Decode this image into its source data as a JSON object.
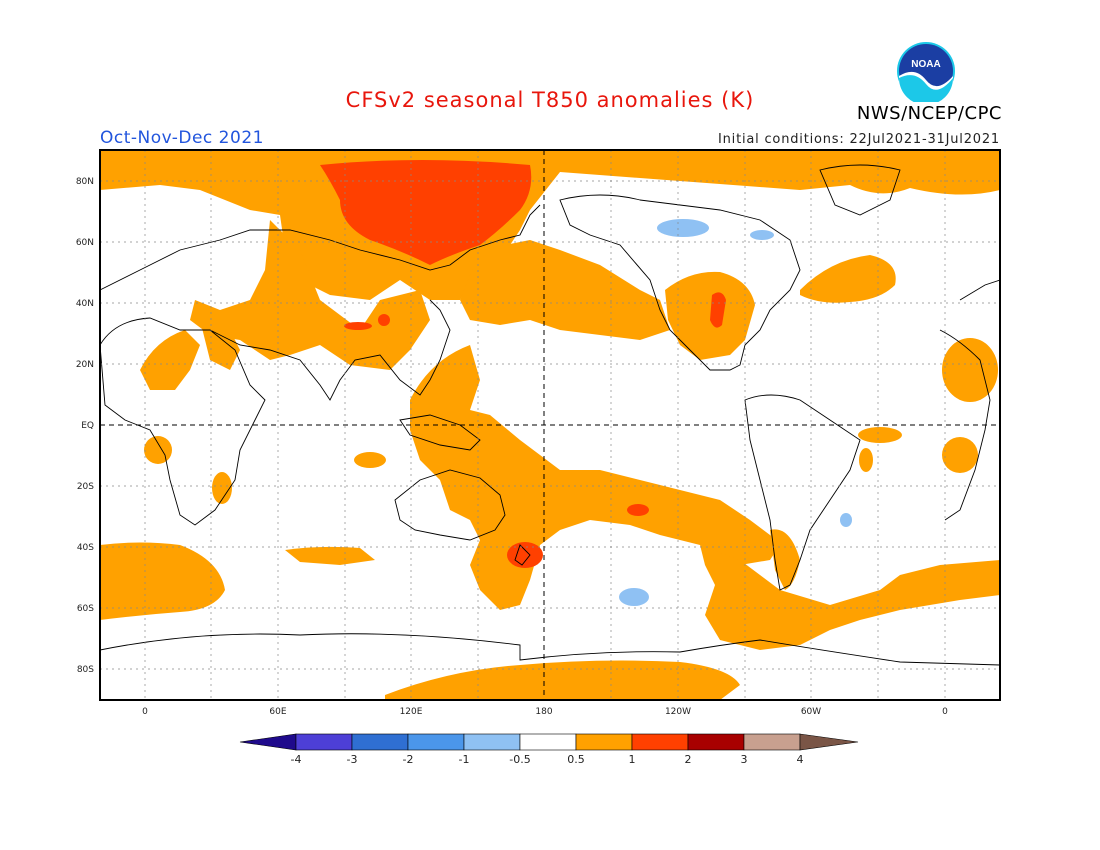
{
  "header": {
    "title": "CFSv2 seasonal T850 anomalies (K)",
    "period": "Oct-Nov-Dec 2021",
    "initial_conditions": "Initial conditions: 22Jul2021-31Jul2021",
    "agency": "NWS/NCEP/CPC",
    "logo_text": "NOAA"
  },
  "map": {
    "lat_labels": [
      "80N",
      "60N",
      "40N",
      "20N",
      "EQ",
      "20S",
      "40S",
      "60S",
      "80S"
    ],
    "lon_labels": [
      "0",
      "60E",
      "120E",
      "180",
      "120W",
      "60W",
      "0"
    ],
    "gridlines": "dotted",
    "center_longitude": "180"
  },
  "colorbar": {
    "labels": [
      "-4",
      "-3",
      "-2",
      "-1",
      "-0.5",
      "0.5",
      "1",
      "2",
      "3",
      "4"
    ],
    "colors": [
      "#1f0a8c",
      "#4d3fd6",
      "#2f6fd2",
      "#4b96ea",
      "#8fc1f3",
      "#ffffff",
      "#ffa100",
      "#ff4000",
      "#a80000",
      "#c8a08f",
      "#7a5546"
    ]
  },
  "anomaly_colors": {
    "warm_0_5_to_1": "#ffa100",
    "warm_1_to_2": "#ff4000",
    "cool_-1_to_-0_5": "#8fc1f3"
  }
}
